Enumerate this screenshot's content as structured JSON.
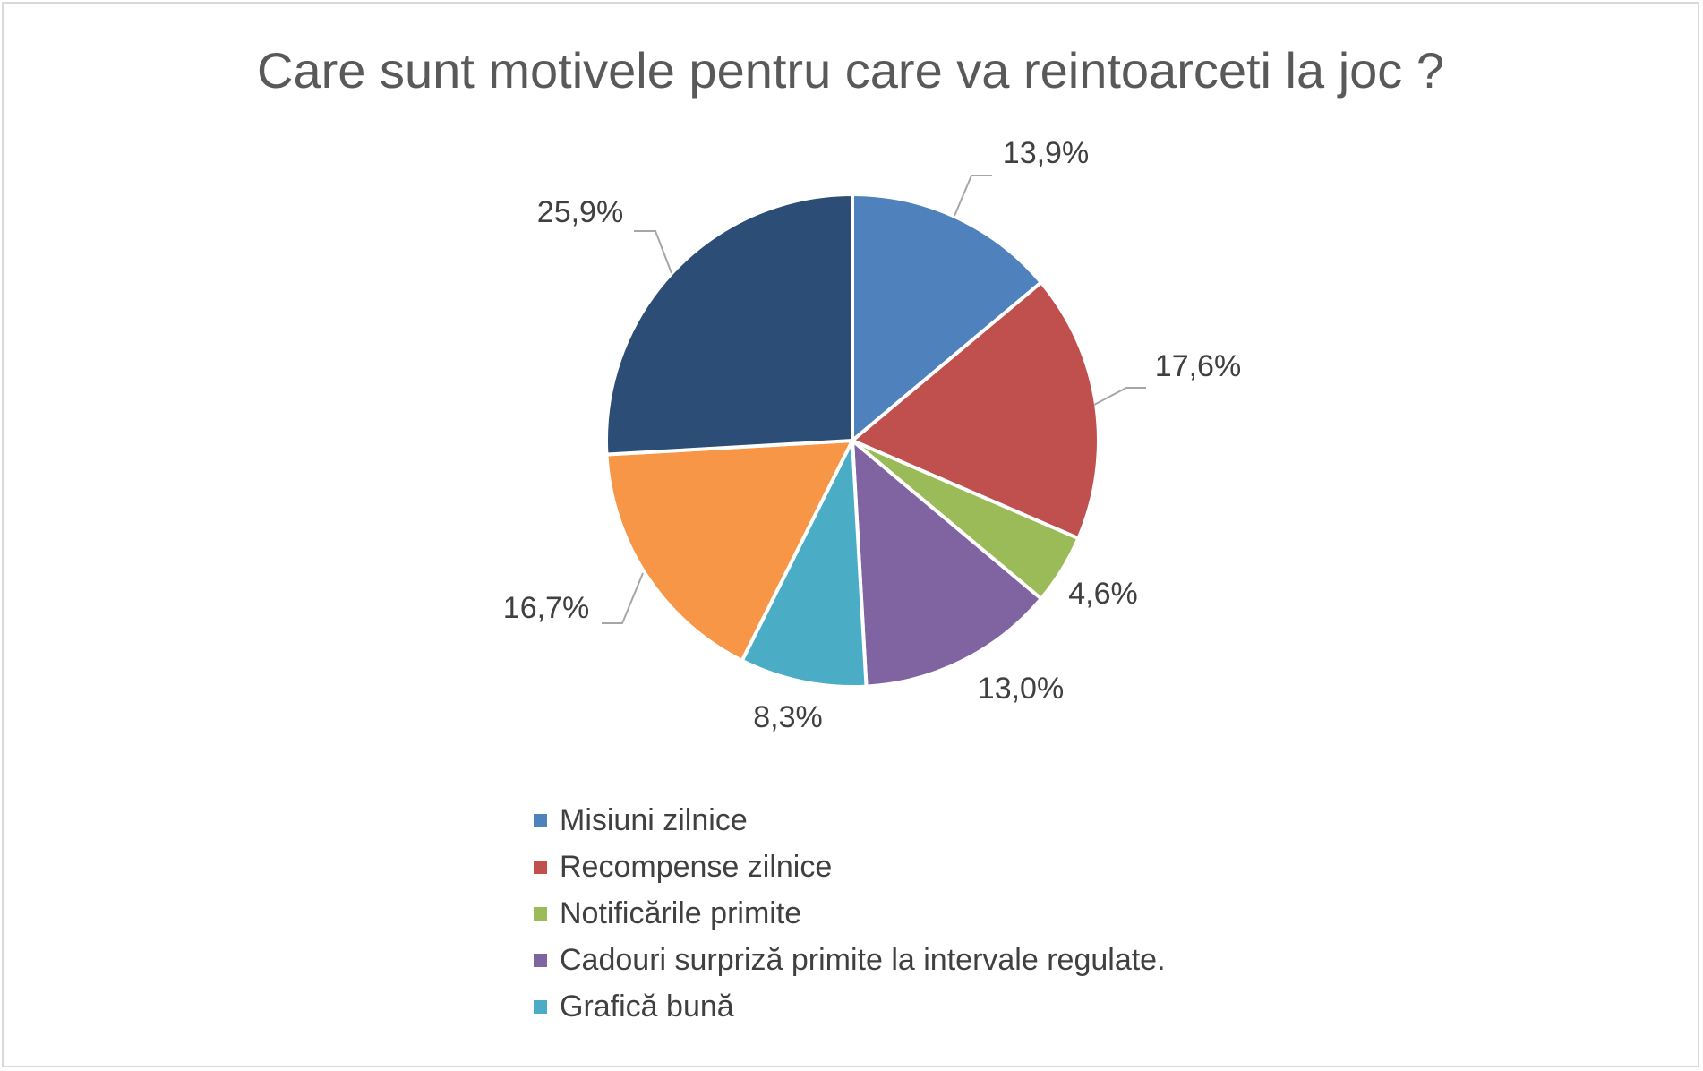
{
  "chart_data": {
    "type": "pie",
    "title": "Care sunt motivele pentru care va reintoarceti la joc ?",
    "categories": [
      "Misiuni zilnice",
      "Recompense zilnice",
      "Notificările primite",
      "Cadouri surpriză primite la intervale regulate.",
      "Grafică bună",
      "",
      ""
    ],
    "values": [
      13.9,
      17.6,
      4.6,
      13.0,
      8.3,
      16.7,
      25.9
    ],
    "labels": [
      "13,9%",
      "17,6%",
      "4,6%",
      "13,0%",
      "8,3%",
      "16,7%",
      "25,9%"
    ],
    "colors": [
      "#4f81bd",
      "#c0504d",
      "#9bbb59",
      "#8064a2",
      "#4bacc6",
      "#f79646",
      "#2c4d75"
    ],
    "legend_position": "bottom",
    "legend": [
      {
        "label": "Misiuni zilnice",
        "color": "#4f81bd"
      },
      {
        "label": "Recompense zilnice",
        "color": "#c0504d"
      },
      {
        "label": "Notificările primite",
        "color": "#9bbb59"
      },
      {
        "label": "Cadouri surpriză primite la intervale regulate.",
        "color": "#8064a2"
      },
      {
        "label": "Grafică bună",
        "color": "#4bacc6"
      }
    ]
  }
}
